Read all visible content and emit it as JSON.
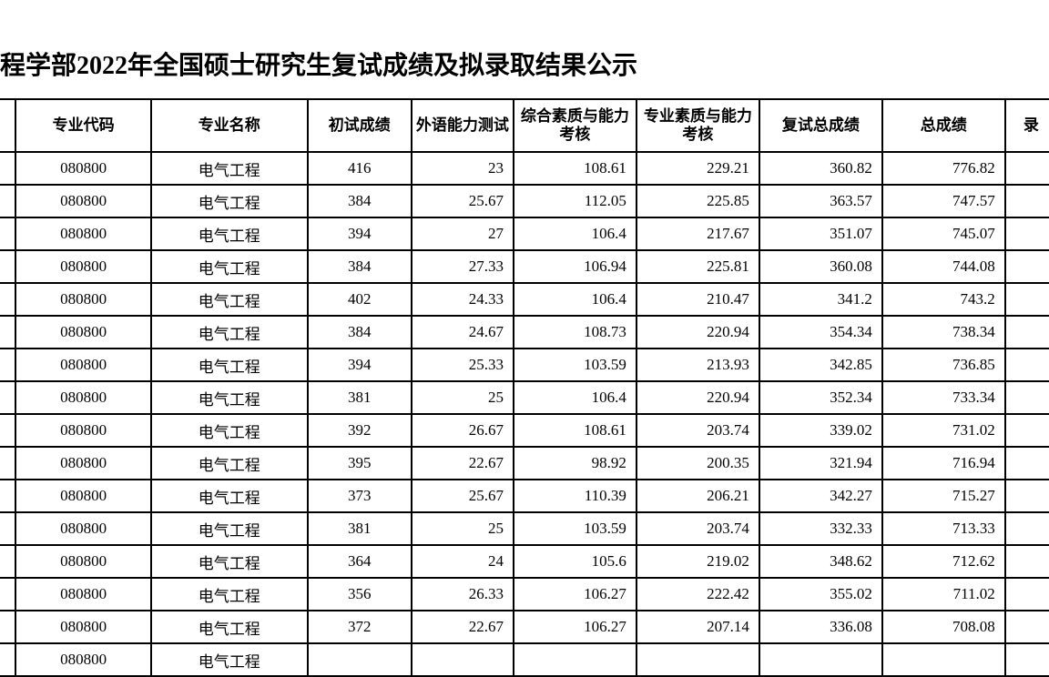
{
  "title": "程学部2022年全国硕士研究生复试成绩及拟录取结果公示",
  "table": {
    "columns": [
      {
        "label": " ",
        "class": "col0"
      },
      {
        "label": "专业代码",
        "class": "col1"
      },
      {
        "label": "专业名称",
        "class": "col2"
      },
      {
        "label": "初试成绩",
        "class": "col3"
      },
      {
        "label": "外语能力测试",
        "class": "col4"
      },
      {
        "label": "综合素质与能力考核",
        "class": "col5"
      },
      {
        "label": "专业素质与能力考核",
        "class": "col6"
      },
      {
        "label": "复试总成绩",
        "class": "col7"
      },
      {
        "label": "总成绩",
        "class": "col8"
      },
      {
        "label": "录",
        "class": "col9"
      }
    ],
    "rows": [
      [
        "",
        "080800",
        "电气工程",
        "416",
        "23",
        "108.61",
        "229.21",
        "360.82",
        "776.82",
        ""
      ],
      [
        "",
        "080800",
        "电气工程",
        "384",
        "25.67",
        "112.05",
        "225.85",
        "363.57",
        "747.57",
        ""
      ],
      [
        "",
        "080800",
        "电气工程",
        "394",
        "27",
        "106.4",
        "217.67",
        "351.07",
        "745.07",
        ""
      ],
      [
        "",
        "080800",
        "电气工程",
        "384",
        "27.33",
        "106.94",
        "225.81",
        "360.08",
        "744.08",
        ""
      ],
      [
        "",
        "080800",
        "电气工程",
        "402",
        "24.33",
        "106.4",
        "210.47",
        "341.2",
        "743.2",
        ""
      ],
      [
        "",
        "080800",
        "电气工程",
        "384",
        "24.67",
        "108.73",
        "220.94",
        "354.34",
        "738.34",
        ""
      ],
      [
        "",
        "080800",
        "电气工程",
        "394",
        "25.33",
        "103.59",
        "213.93",
        "342.85",
        "736.85",
        ""
      ],
      [
        "",
        "080800",
        "电气工程",
        "381",
        "25",
        "106.4",
        "220.94",
        "352.34",
        "733.34",
        ""
      ],
      [
        "",
        "080800",
        "电气工程",
        "392",
        "26.67",
        "108.61",
        "203.74",
        "339.02",
        "731.02",
        ""
      ],
      [
        "",
        "080800",
        "电气工程",
        "395",
        "22.67",
        "98.92",
        "200.35",
        "321.94",
        "716.94",
        ""
      ],
      [
        "",
        "080800",
        "电气工程",
        "373",
        "25.67",
        "110.39",
        "206.21",
        "342.27",
        "715.27",
        ""
      ],
      [
        "",
        "080800",
        "电气工程",
        "381",
        "25",
        "103.59",
        "203.74",
        "332.33",
        "713.33",
        ""
      ],
      [
        "",
        "080800",
        "电气工程",
        "364",
        "24",
        "105.6",
        "219.02",
        "348.62",
        "712.62",
        ""
      ],
      [
        "",
        "080800",
        "电气工程",
        "356",
        "26.33",
        "106.27",
        "222.42",
        "355.02",
        "711.02",
        ""
      ],
      [
        "",
        "080800",
        "电气工程",
        "372",
        "22.67",
        "106.27",
        "207.14",
        "336.08",
        "708.08",
        ""
      ],
      [
        "",
        "080800",
        "电气工程",
        "",
        "",
        "",
        "",
        "",
        "",
        ""
      ]
    ],
    "cell_align": {
      "1": "center",
      "2": "center",
      "3": "center",
      "4": "num",
      "5": "num",
      "6": "num",
      "7": "num",
      "8": "num"
    }
  },
  "styling": {
    "background_color": "#ffffff",
    "border_color": "#000000",
    "border_width": 2,
    "text_color": "#000000",
    "header_font_weight": "bold",
    "title_fontsize": 28,
    "cell_fontsize": 17,
    "header_row_height": 58,
    "data_row_height": 36
  }
}
